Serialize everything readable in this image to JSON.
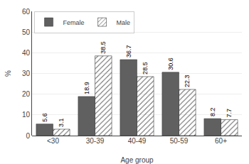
{
  "chart_data": {
    "type": "bar",
    "xlabel": "Age group",
    "ylabel": "% ",
    "categories": [
      "<30",
      "30-39",
      "40-49",
      "50-59",
      "60+"
    ],
    "series": [
      {
        "name": "Female",
        "color": "#606060",
        "values": [
          5.6,
          18.9,
          36.7,
          30.6,
          8.2
        ]
      },
      {
        "name": "Male",
        "color": "#d8d8d8",
        "values": [
          3.1,
          38.5,
          28.5,
          22.3,
          7.7
        ]
      }
    ],
    "ylim": [
      0,
      60
    ],
    "yticks": [
      0,
      10,
      20,
      30,
      40,
      50,
      60
    ],
    "grid": true,
    "legend": "upper left",
    "data_labels": true
  }
}
